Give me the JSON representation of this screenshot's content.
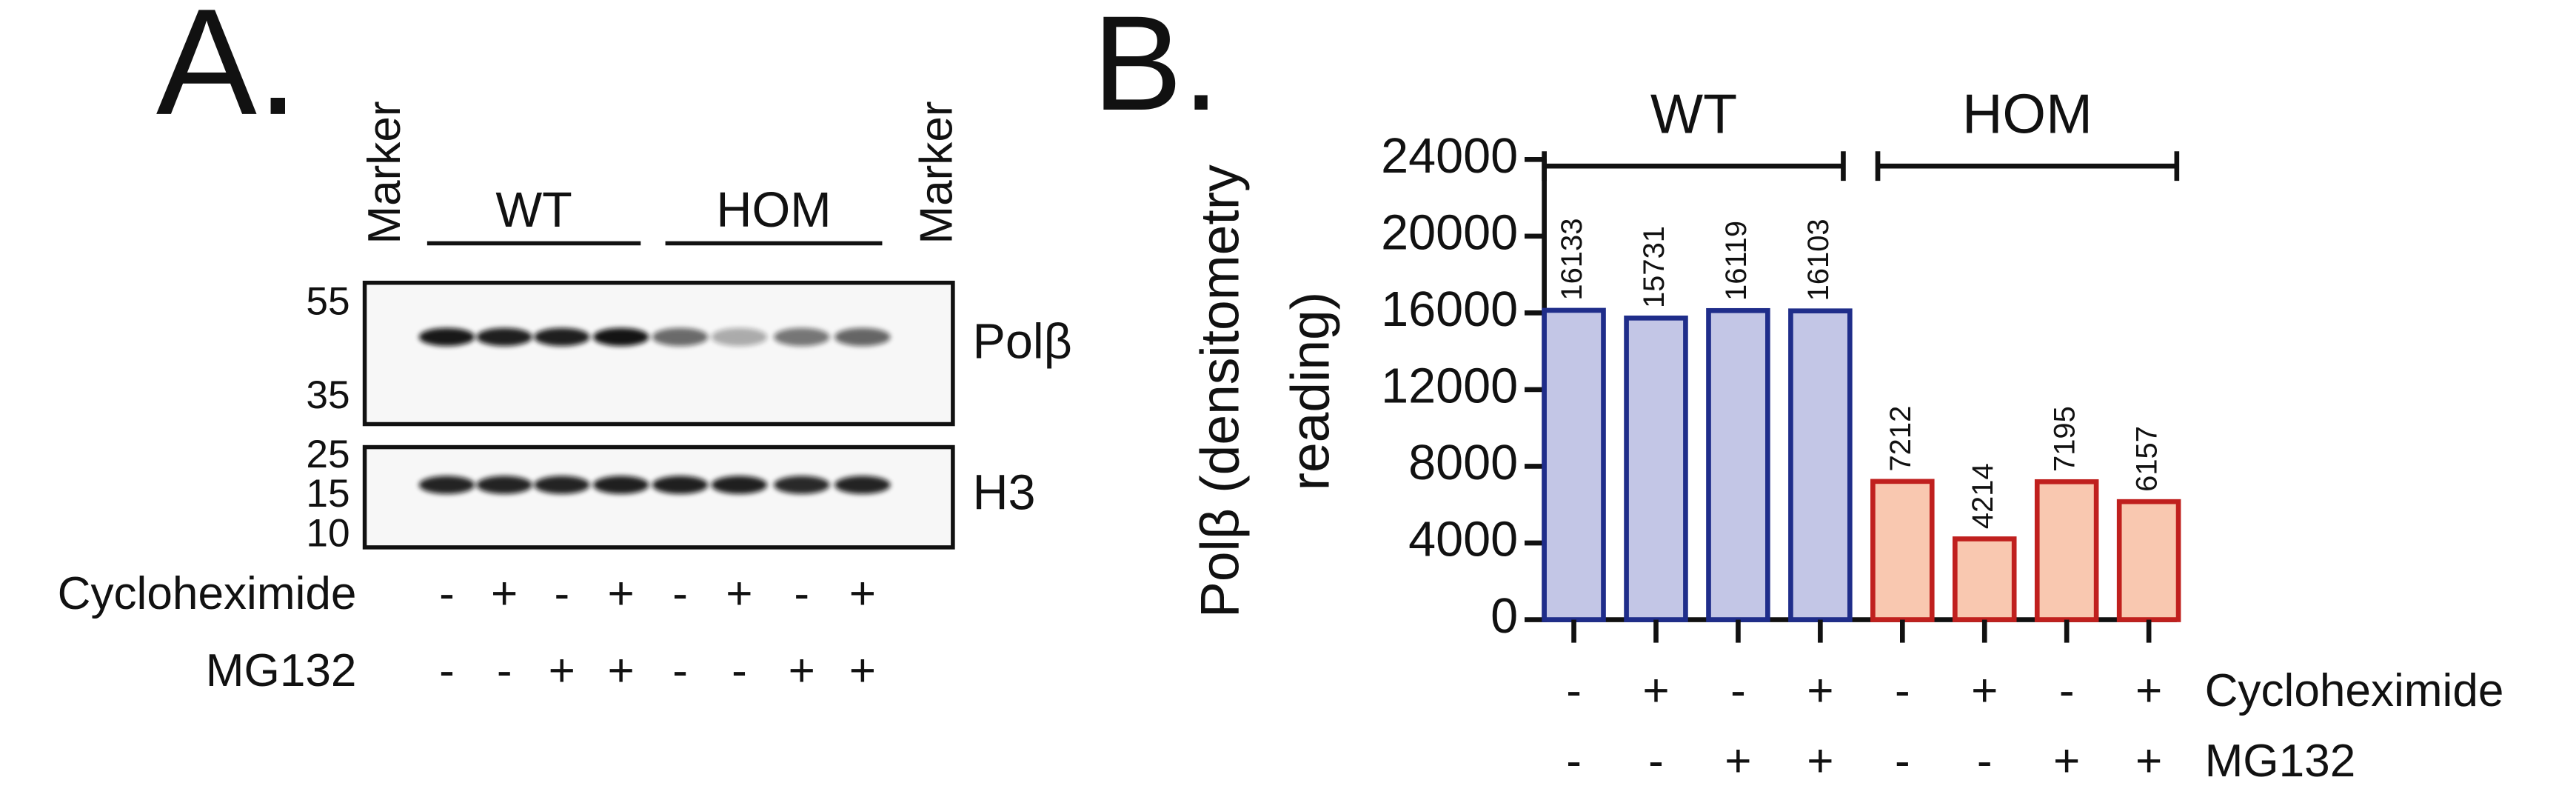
{
  "panel_a": {
    "label": "A.",
    "marker": "Marker",
    "groups": [
      "WT",
      "HOM"
    ],
    "blots": [
      {
        "name": "Polβ",
        "markers": [
          55,
          35
        ]
      },
      {
        "name": "H3",
        "markers": [
          25,
          15,
          10
        ]
      }
    ],
    "conditions": [
      {
        "name": "Cycloheximide",
        "signs": [
          "-",
          "+",
          "-",
          "+",
          "-",
          "+",
          "-",
          "+"
        ]
      },
      {
        "name": "MG132",
        "signs": [
          "-",
          "-",
          "+",
          "+",
          "-",
          "-",
          "+",
          "+"
        ]
      }
    ]
  },
  "chart_data": {
    "type": "bar",
    "label": "B.",
    "ylabel": [
      "Polβ (densitometry",
      "reading)"
    ],
    "series": [
      {
        "name": "WT",
        "fill": "#c3c6e6",
        "color": "#1f2d8a",
        "values": [
          16133,
          15731,
          16119,
          16103
        ]
      },
      {
        "name": "HOM",
        "fill": "#f9c8b0",
        "color": "#c0201e",
        "values": [
          7212,
          4214,
          7195,
          6157
        ]
      }
    ],
    "ylim": [
      0,
      24000
    ],
    "yticks": [
      0,
      4000,
      8000,
      12000,
      16000,
      20000,
      24000
    ],
    "conditions": [
      {
        "name": "Cycloheximide",
        "signs": [
          "-",
          "+",
          "-",
          "+",
          "-",
          "+",
          "-",
          "+"
        ]
      },
      {
        "name": "MG132",
        "signs": [
          "-",
          "-",
          "+",
          "+",
          "-",
          "-",
          "+",
          "+"
        ]
      }
    ]
  }
}
